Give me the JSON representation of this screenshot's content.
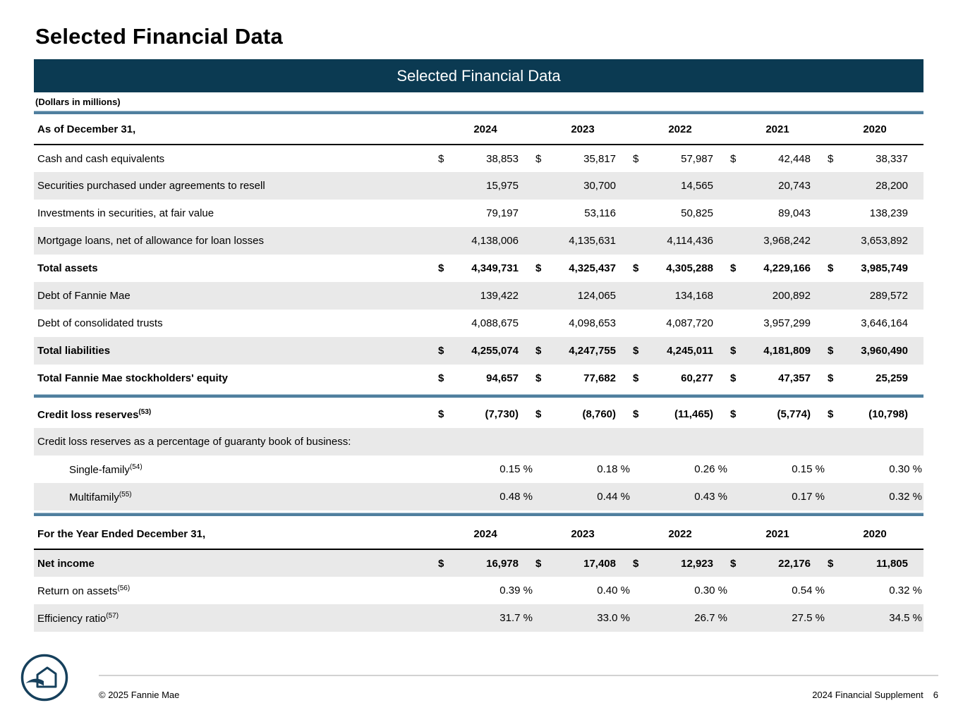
{
  "page": {
    "title": "Selected Financial Data"
  },
  "table": {
    "title": "Selected Financial Data",
    "units_note": "(Dollars in millions)",
    "dollar_sign": "$",
    "percent_suffix": "%",
    "years": [
      "2024",
      "2023",
      "2022",
      "2021",
      "2020"
    ],
    "sections": [
      {
        "header": "As of December 31,",
        "rows": [
          {
            "label": "Cash and cash equivalents",
            "dollar": true,
            "values": [
              "38,853",
              "35,817",
              "57,987",
              "42,448",
              "38,337"
            ]
          },
          {
            "label": "Securities purchased under agreements to resell",
            "shaded": true,
            "values": [
              "15,975",
              "30,700",
              "14,565",
              "20,743",
              "28,200"
            ]
          },
          {
            "label": "Investments in securities, at fair value",
            "values": [
              "79,197",
              "53,116",
              "50,825",
              "89,043",
              "138,239"
            ]
          },
          {
            "label": "Mortgage loans, net of allowance for loan losses",
            "shaded": true,
            "values": [
              "4,138,006",
              "4,135,631",
              "4,114,436",
              "3,968,242",
              "3,653,892"
            ]
          },
          {
            "label": "Total assets",
            "bold": true,
            "dollar": true,
            "values": [
              "4,349,731",
              "4,325,437",
              "4,305,288",
              "4,229,166",
              "3,985,749"
            ]
          },
          {
            "label": "Debt of Fannie Mae",
            "shaded": true,
            "values": [
              "139,422",
              "124,065",
              "134,168",
              "200,892",
              "289,572"
            ]
          },
          {
            "label": "Debt of consolidated trusts",
            "values": [
              "4,088,675",
              "4,098,653",
              "4,087,720",
              "3,957,299",
              "3,646,164"
            ]
          },
          {
            "label": "Total liabilities",
            "bold": true,
            "dollar": true,
            "shaded": true,
            "values": [
              "4,255,074",
              "4,247,755",
              "4,245,011",
              "4,181,809",
              "3,960,490"
            ]
          },
          {
            "label": "Total Fannie Mae stockholders' equity",
            "bold": true,
            "dollar": true,
            "values": [
              "94,657",
              "77,682",
              "60,277",
              "47,357",
              "25,259"
            ]
          }
        ]
      },
      {
        "rows": [
          {
            "label": "Credit loss reserves",
            "sup": "(53)",
            "bold": true,
            "dollar": true,
            "values": [
              "(7,730)",
              "(8,760)",
              "(11,465)",
              "(5,774)",
              "(10,798)"
            ]
          },
          {
            "label": "Credit loss reserves as a percentage of guaranty book of business:",
            "shaded": true,
            "values": []
          },
          {
            "label": "Single-family",
            "sup": "(54)",
            "indent": true,
            "percent": true,
            "values": [
              "0.15",
              "0.18",
              "0.26",
              "0.15",
              "0.30"
            ]
          },
          {
            "label": "Multifamily",
            "sup": "(55)",
            "indent": true,
            "shaded": true,
            "percent": true,
            "values": [
              "0.48",
              "0.44",
              "0.43",
              "0.17",
              "0.32"
            ]
          }
        ]
      },
      {
        "header": "For the Year Ended December 31,",
        "rows": [
          {
            "label": "Net income",
            "bold": true,
            "dollar": true,
            "shaded": true,
            "values": [
              "16,978",
              "17,408",
              "12,923",
              "22,176",
              "11,805"
            ]
          },
          {
            "label": "Return on assets",
            "sup": "(56)",
            "percent": true,
            "values": [
              "0.39",
              "0.40",
              "0.30",
              "0.54",
              "0.32"
            ]
          },
          {
            "label": "Efficiency ratio",
            "sup": "(57)",
            "shaded": true,
            "percent": true,
            "values": [
              "31.7",
              "33.0",
              "26.7",
              "27.5",
              "34.5"
            ]
          }
        ]
      }
    ]
  },
  "footer": {
    "copyright": "© 2025 Fannie Mae",
    "supplement": "2024 Financial Supplement",
    "page_number": "6"
  }
}
